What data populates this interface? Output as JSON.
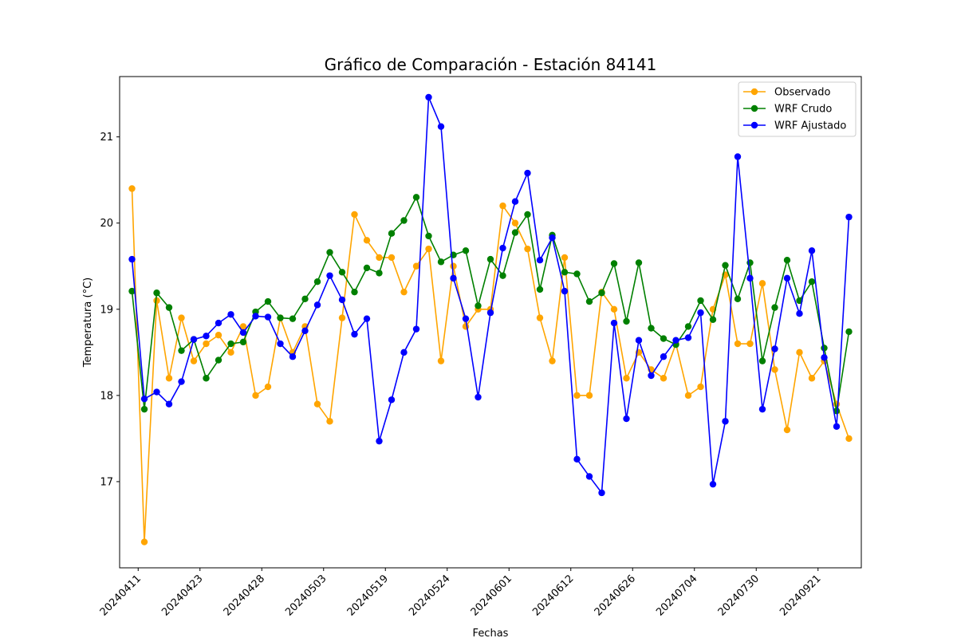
{
  "chart_data": {
    "type": "line",
    "title": "Gráfico de Comparación - Estación 84141",
    "xlabel": "Fechas",
    "ylabel": "Temperatura (°C)",
    "ylim": [
      16.0,
      21.7
    ],
    "yticks": [
      17,
      18,
      19,
      20,
      21
    ],
    "grid": false,
    "legend_position": "top-right",
    "x_tick_labels": [
      "20240411",
      "20240423",
      "20240428",
      "20240503",
      "20240519",
      "20240524",
      "20240601",
      "20240612",
      "20240626",
      "20240704",
      "20240730",
      "20240921"
    ],
    "x_tick_positions": [
      0.5,
      5.5,
      10.5,
      15.5,
      20.5,
      25.5,
      30.5,
      35.5,
      40.5,
      45.5,
      50.5,
      55.5
    ],
    "series": [
      {
        "name": "Observado",
        "color": "#ffa500",
        "values": [
          20.4,
          16.3,
          19.1,
          18.2,
          18.9,
          18.4,
          18.6,
          18.7,
          18.5,
          18.8,
          18.0,
          18.1,
          18.9,
          18.5,
          18.8,
          17.9,
          17.7,
          18.9,
          20.1,
          19.8,
          19.6,
          19.6,
          19.2,
          19.5,
          19.7,
          18.4,
          19.5,
          18.8,
          19.0,
          19.0,
          20.2,
          20.0,
          19.7,
          18.9,
          18.4,
          19.6,
          18.0,
          18.0,
          19.2,
          19.0,
          18.2,
          18.5,
          18.3,
          18.2,
          18.6,
          18.0,
          18.1,
          19.0,
          19.4,
          18.6,
          18.6,
          19.3,
          18.3,
          17.6,
          18.5,
          18.2,
          18.4,
          17.9,
          17.5
        ]
      },
      {
        "name": "WRF Crudo",
        "color": "#008000",
        "values": [
          19.21,
          17.84,
          19.19,
          19.02,
          18.52,
          18.65,
          18.2,
          18.41,
          18.6,
          18.62,
          18.97,
          19.09,
          18.9,
          18.89,
          19.12,
          19.32,
          19.66,
          19.43,
          19.2,
          19.48,
          19.42,
          19.88,
          20.03,
          20.3,
          19.85,
          19.55,
          19.63,
          19.68,
          19.04,
          19.58,
          19.39,
          19.89,
          20.1,
          19.23,
          19.86,
          19.43,
          19.41,
          19.09,
          19.19,
          19.53,
          18.86,
          19.54,
          18.78,
          18.66,
          18.59,
          18.8,
          19.1,
          18.88,
          19.51,
          19.12,
          19.54,
          18.4,
          19.02,
          19.57,
          19.1,
          19.32,
          18.55,
          17.82,
          18.74
        ]
      },
      {
        "name": "WRF Ajustado",
        "color": "#0000ff",
        "values": [
          19.58,
          17.96,
          18.04,
          17.9,
          18.16,
          18.65,
          18.69,
          18.84,
          18.94,
          18.73,
          18.92,
          18.91,
          18.6,
          18.45,
          18.75,
          19.05,
          19.39,
          19.11,
          18.71,
          18.89,
          17.47,
          17.95,
          18.5,
          18.77,
          21.46,
          21.12,
          19.36,
          18.89,
          17.98,
          18.96,
          19.71,
          20.25,
          20.58,
          19.57,
          19.83,
          19.21,
          17.26,
          17.06,
          16.87,
          18.84,
          17.73,
          18.64,
          18.23,
          18.45,
          18.64,
          18.67,
          18.96,
          16.97,
          17.7,
          20.77,
          19.36,
          17.84,
          18.54,
          19.36,
          18.95,
          19.68,
          18.44,
          17.64,
          20.07
        ]
      }
    ]
  }
}
